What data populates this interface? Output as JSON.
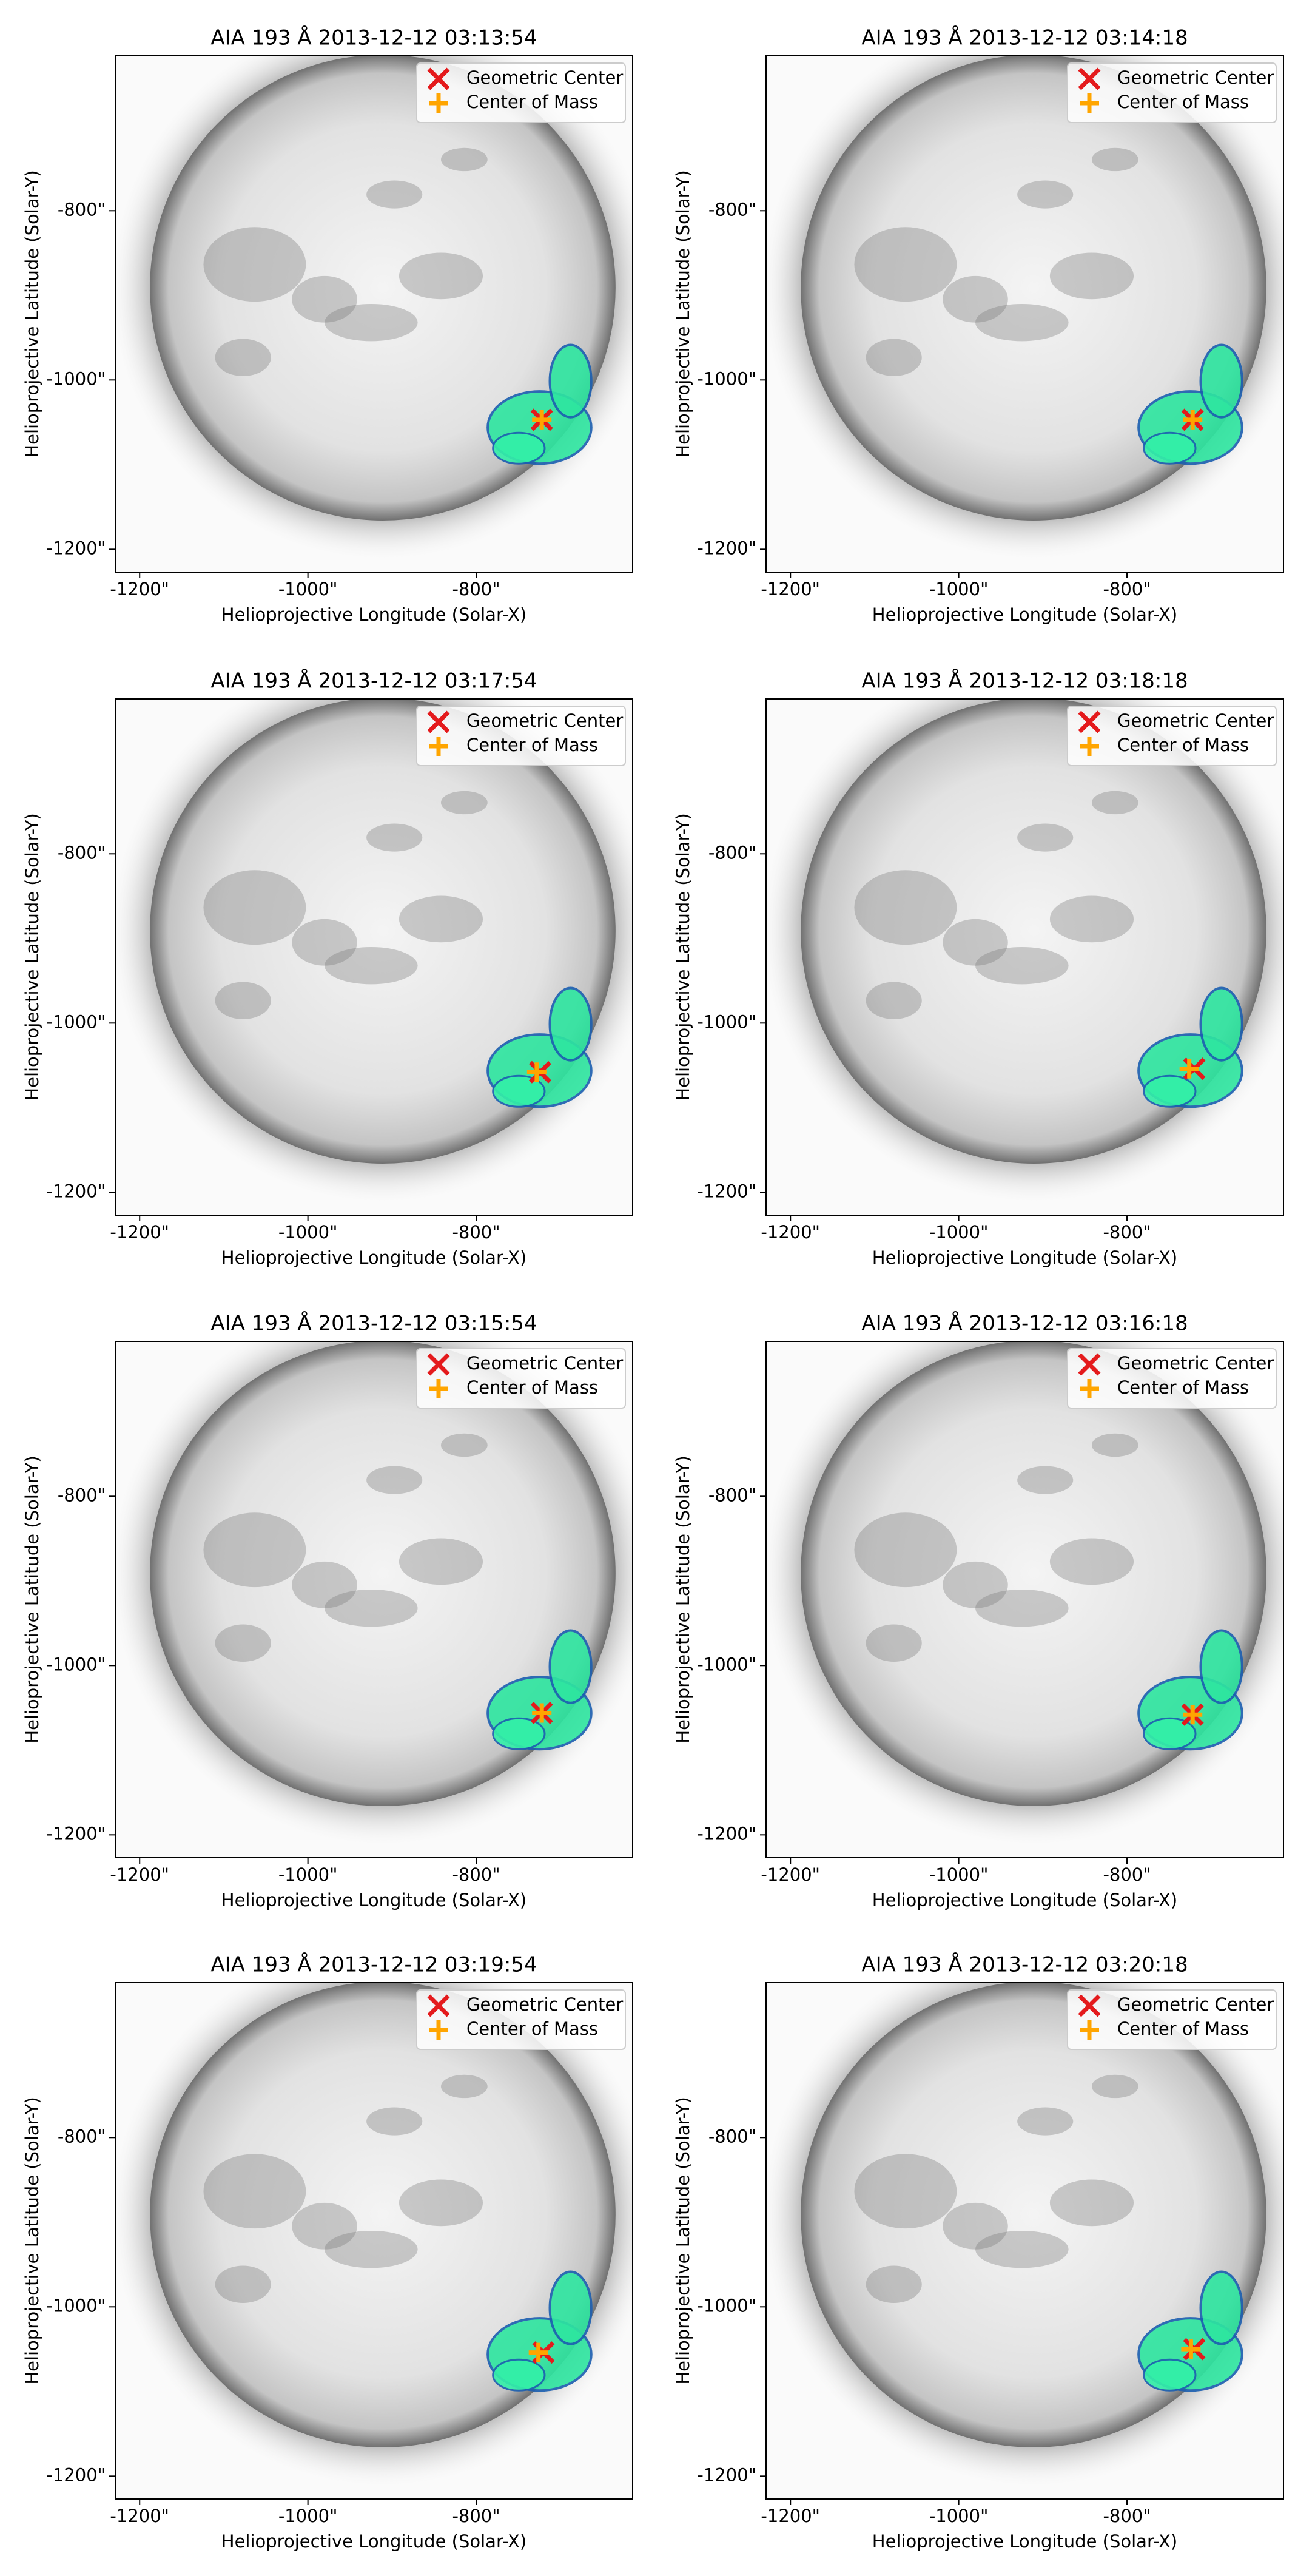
{
  "chart_data": [
    {
      "type": "scatter",
      "title": "AIA 193 Å 2013-12-12 03:13:54",
      "xlabel": "Helioprojective Longitude (Solar-X)",
      "ylabel": "Helioprojective Latitude (Solar-Y)",
      "xlim": [
        -1229,
        -614
      ],
      "ylim": [
        -1227,
        -617
      ],
      "xticks": [
        {
          "value": -1200,
          "label": "-1200\""
        },
        {
          "value": -1000,
          "label": "-1000\""
        },
        {
          "value": -800,
          "label": "-800\""
        }
      ],
      "yticks": [
        {
          "value": -1200,
          "label": "-1200\""
        },
        {
          "value": -1000,
          "label": "-1000\""
        },
        {
          "value": -800,
          "label": "-800\""
        }
      ],
      "legend": "upper right",
      "series": [
        {
          "name": "Geometric Center",
          "color": "#e41a1c",
          "marker": "x",
          "x": [
            -722
          ],
          "values": [
            -1047
          ]
        },
        {
          "name": "Center of Mass",
          "color": "#ffa500",
          "marker": "+",
          "x": [
            -722
          ],
          "values": [
            -1047
          ]
        }
      ]
    },
    {
      "type": "scatter",
      "title": "AIA 193 Å 2013-12-12 03:14:18",
      "xlabel": "Helioprojective Longitude (Solar-X)",
      "ylabel": "Helioprojective Latitude (Solar-Y)",
      "xlim": [
        -1229,
        -614
      ],
      "ylim": [
        -1227,
        -617
      ],
      "xticks": [
        {
          "value": -1200,
          "label": "-1200\""
        },
        {
          "value": -1000,
          "label": "-1000\""
        },
        {
          "value": -800,
          "label": "-800\""
        }
      ],
      "yticks": [
        {
          "value": -1200,
          "label": "-1200\""
        },
        {
          "value": -1000,
          "label": "-1000\""
        },
        {
          "value": -800,
          "label": "-800\""
        }
      ],
      "legend": "upper right",
      "series": [
        {
          "name": "Geometric Center",
          "color": "#e41a1c",
          "marker": "x",
          "x": [
            -722
          ],
          "values": [
            -1047
          ]
        },
        {
          "name": "Center of Mass",
          "color": "#ffa500",
          "marker": "+",
          "x": [
            -722
          ],
          "values": [
            -1047
          ]
        }
      ]
    },
    {
      "type": "scatter",
      "title": "AIA 193 Å 2013-12-12 03:17:54",
      "xlabel": "Helioprojective Longitude (Solar-X)",
      "ylabel": "Helioprojective Latitude (Solar-Y)",
      "xlim": [
        -1229,
        -614
      ],
      "ylim": [
        -1227,
        -617
      ],
      "xticks": [
        {
          "value": -1200,
          "label": "-1200\""
        },
        {
          "value": -1000,
          "label": "-1000\""
        },
        {
          "value": -800,
          "label": "-800\""
        }
      ],
      "yticks": [
        {
          "value": -1200,
          "label": "-1200\""
        },
        {
          "value": -1000,
          "label": "-1000\""
        },
        {
          "value": -800,
          "label": "-800\""
        }
      ],
      "legend": "upper right",
      "series": [
        {
          "name": "Geometric Center",
          "color": "#e41a1c",
          "marker": "x",
          "x": [
            -724
          ],
          "values": [
            -1058
          ]
        },
        {
          "name": "Center of Mass",
          "color": "#ffa500",
          "marker": "+",
          "x": [
            -728
          ],
          "values": [
            -1058
          ]
        }
      ]
    },
    {
      "type": "scatter",
      "title": "AIA 193 Å 2013-12-12 03:18:18",
      "xlabel": "Helioprojective Longitude (Solar-X)",
      "ylabel": "Helioprojective Latitude (Solar-Y)",
      "xlim": [
        -1229,
        -614
      ],
      "ylim": [
        -1227,
        -617
      ],
      "xticks": [
        {
          "value": -1200,
          "label": "-1200\""
        },
        {
          "value": -1000,
          "label": "-1000\""
        },
        {
          "value": -800,
          "label": "-800\""
        }
      ],
      "yticks": [
        {
          "value": -1200,
          "label": "-1200\""
        },
        {
          "value": -1000,
          "label": "-1000\""
        },
        {
          "value": -800,
          "label": "-800\""
        }
      ],
      "legend": "upper right",
      "series": [
        {
          "name": "Geometric Center",
          "color": "#e41a1c",
          "marker": "x",
          "x": [
            -720
          ],
          "values": [
            -1054
          ]
        },
        {
          "name": "Center of Mass",
          "color": "#ffa500",
          "marker": "+",
          "x": [
            -726
          ],
          "values": [
            -1054
          ]
        }
      ]
    },
    {
      "type": "scatter",
      "title": "AIA 193 Å 2013-12-12 03:15:54",
      "xlabel": "Helioprojective Longitude (Solar-X)",
      "ylabel": "Helioprojective Latitude (Solar-Y)",
      "xlim": [
        -1229,
        -614
      ],
      "ylim": [
        -1227,
        -617
      ],
      "xticks": [
        {
          "value": -1200,
          "label": "-1200\""
        },
        {
          "value": -1000,
          "label": "-1000\""
        },
        {
          "value": -800,
          "label": "-800\""
        }
      ],
      "yticks": [
        {
          "value": -1200,
          "label": "-1200\""
        },
        {
          "value": -1000,
          "label": "-1000\""
        },
        {
          "value": -800,
          "label": "-800\""
        }
      ],
      "legend": "upper right",
      "series": [
        {
          "name": "Geometric Center",
          "color": "#e41a1c",
          "marker": "x",
          "x": [
            -722
          ],
          "values": [
            -1056
          ]
        },
        {
          "name": "Center of Mass",
          "color": "#ffa500",
          "marker": "+",
          "x": [
            -722
          ],
          "values": [
            -1056
          ]
        }
      ]
    },
    {
      "type": "scatter",
      "title": "AIA 193 Å 2013-12-12 03:16:18",
      "xlabel": "Helioprojective Longitude (Solar-X)",
      "ylabel": "Helioprojective Latitude (Solar-Y)",
      "xlim": [
        -1229,
        -614
      ],
      "ylim": [
        -1227,
        -617
      ],
      "xticks": [
        {
          "value": -1200,
          "label": "-1200\""
        },
        {
          "value": -1000,
          "label": "-1000\""
        },
        {
          "value": -800,
          "label": "-800\""
        }
      ],
      "yticks": [
        {
          "value": -1200,
          "label": "-1200\""
        },
        {
          "value": -1000,
          "label": "-1000\""
        },
        {
          "value": -800,
          "label": "-800\""
        }
      ],
      "legend": "upper right",
      "series": [
        {
          "name": "Geometric Center",
          "color": "#e41a1c",
          "marker": "x",
          "x": [
            -722
          ],
          "values": [
            -1058
          ]
        },
        {
          "name": "Center of Mass",
          "color": "#ffa500",
          "marker": "+",
          "x": [
            -722
          ],
          "values": [
            -1058
          ]
        }
      ]
    },
    {
      "type": "scatter",
      "title": "AIA 193 Å 2013-12-12 03:19:54",
      "xlabel": "Helioprojective Longitude (Solar-X)",
      "ylabel": "Helioprojective Latitude (Solar-Y)",
      "xlim": [
        -1229,
        -614
      ],
      "ylim": [
        -1227,
        -617
      ],
      "xticks": [
        {
          "value": -1200,
          "label": "-1200\""
        },
        {
          "value": -1000,
          "label": "-1000\""
        },
        {
          "value": -800,
          "label": "-800\""
        }
      ],
      "yticks": [
        {
          "value": -1200,
          "label": "-1200\""
        },
        {
          "value": -1000,
          "label": "-1000\""
        },
        {
          "value": -800,
          "label": "-800\""
        }
      ],
      "legend": "upper right",
      "series": [
        {
          "name": "Geometric Center",
          "color": "#e41a1c",
          "marker": "x",
          "x": [
            -720
          ],
          "values": [
            -1054
          ]
        },
        {
          "name": "Center of Mass",
          "color": "#ffa500",
          "marker": "+",
          "x": [
            -726
          ],
          "values": [
            -1054
          ]
        }
      ]
    },
    {
      "type": "scatter",
      "title": "AIA 193 Å 2013-12-12 03:20:18",
      "xlabel": "Helioprojective Longitude (Solar-X)",
      "ylabel": "Helioprojective Latitude (Solar-Y)",
      "xlim": [
        -1229,
        -614
      ],
      "ylim": [
        -1227,
        -617
      ],
      "xticks": [
        {
          "value": -1200,
          "label": "-1200\""
        },
        {
          "value": -1000,
          "label": "-1000\""
        },
        {
          "value": -800,
          "label": "-800\""
        }
      ],
      "yticks": [
        {
          "value": -1200,
          "label": "-1200\""
        },
        {
          "value": -1000,
          "label": "-1000\""
        },
        {
          "value": -800,
          "label": "-800\""
        }
      ],
      "legend": "upper right",
      "series": [
        {
          "name": "Geometric Center",
          "color": "#e41a1c",
          "marker": "x",
          "x": [
            -720
          ],
          "values": [
            -1050
          ]
        },
        {
          "name": "Center of Mass",
          "color": "#ffa500",
          "marker": "+",
          "x": [
            -724
          ],
          "values": [
            -1050
          ]
        }
      ]
    }
  ]
}
